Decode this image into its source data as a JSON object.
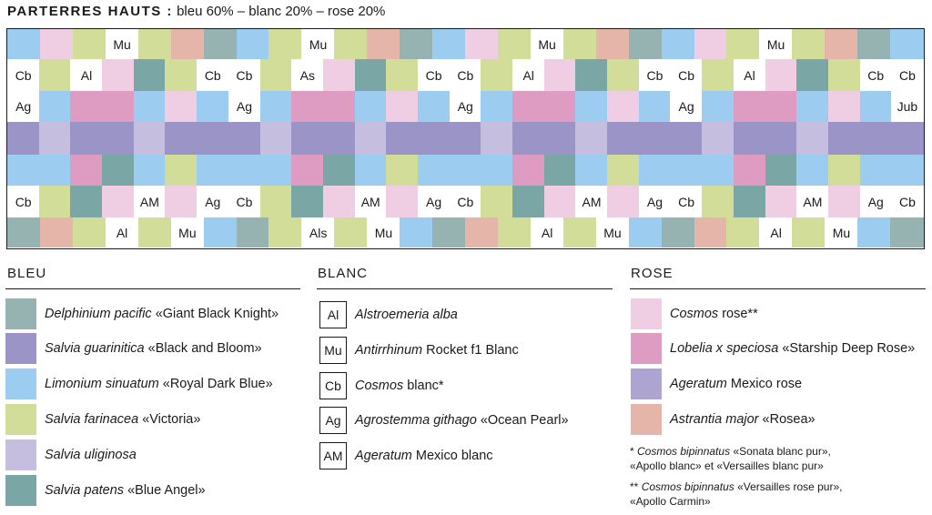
{
  "header": {
    "title_bold": "PARTERRES HAUTS :",
    "title_rest": " bleu 60% – blanc 20% – rose 20%"
  },
  "colors": {
    "dp": "#97b3b1",
    "sg": "#9b95c7",
    "ls": "#9ccdf0",
    "sf": "#d2dd9a",
    "su": "#c6bedf",
    "sp": "#7aa6a6",
    "cr": "#efcde3",
    "lx": "#df9cc2",
    "am": "#aea4d2",
    "as": "#e6b5aa",
    "w": "#ffffff"
  },
  "grid": {
    "rows": [
      [
        [
          "ls",
          ""
        ],
        [
          "cr",
          ""
        ],
        [
          "sf",
          ""
        ],
        [
          "w",
          "Mu"
        ],
        [
          "sf",
          ""
        ],
        [
          "as",
          ""
        ],
        [
          "dp",
          ""
        ],
        [
          "ls",
          ""
        ],
        [
          "sf",
          ""
        ],
        [
          "w",
          "Mu"
        ],
        [
          "sf",
          ""
        ],
        [
          "as",
          ""
        ],
        [
          "dp",
          ""
        ],
        [
          "ls",
          ""
        ],
        [
          "cr",
          ""
        ],
        [
          "sf",
          ""
        ],
        [
          "w",
          "Mu"
        ],
        [
          "sf",
          ""
        ],
        [
          "as",
          ""
        ],
        [
          "dp",
          ""
        ],
        [
          "ls",
          ""
        ],
        [
          "cr",
          ""
        ],
        [
          "sf",
          ""
        ],
        [
          "w",
          "Mu"
        ],
        [
          "sf",
          ""
        ],
        [
          "as",
          ""
        ],
        [
          "dp",
          ""
        ],
        [
          "ls",
          ""
        ]
      ],
      [
        [
          "w",
          "Cb"
        ],
        [
          "sf",
          ""
        ],
        [
          "w",
          "Al"
        ],
        [
          "cr",
          ""
        ],
        [
          "sp",
          ""
        ],
        [
          "sf",
          ""
        ],
        [
          "w",
          "Cb"
        ],
        [
          "w",
          "Cb"
        ],
        [
          "sf",
          ""
        ],
        [
          "w",
          "As"
        ],
        [
          "cr",
          ""
        ],
        [
          "sp",
          ""
        ],
        [
          "sf",
          ""
        ],
        [
          "w",
          "Cb"
        ],
        [
          "w",
          "Cb"
        ],
        [
          "sf",
          ""
        ],
        [
          "w",
          "Al"
        ],
        [
          "cr",
          ""
        ],
        [
          "sp",
          ""
        ],
        [
          "sf",
          ""
        ],
        [
          "w",
          "Cb"
        ],
        [
          "w",
          "Cb"
        ],
        [
          "sf",
          ""
        ],
        [
          "w",
          "Al"
        ],
        [
          "cr",
          ""
        ],
        [
          "sp",
          ""
        ],
        [
          "sf",
          ""
        ],
        [
          "w",
          "Cb"
        ],
        [
          "w",
          "Cb"
        ]
      ],
      [
        [
          "w",
          "Ag"
        ],
        [
          "ls",
          ""
        ],
        [
          "lx",
          ""
        ],
        [
          "lx",
          ""
        ],
        [
          "ls",
          ""
        ],
        [
          "cr",
          ""
        ],
        [
          "ls",
          ""
        ],
        [
          "w",
          "Ag"
        ],
        [
          "ls",
          ""
        ],
        [
          "lx",
          ""
        ],
        [
          "lx",
          ""
        ],
        [
          "ls",
          ""
        ],
        [
          "cr",
          ""
        ],
        [
          "ls",
          ""
        ],
        [
          "w",
          "Ag"
        ],
        [
          "ls",
          ""
        ],
        [
          "lx",
          ""
        ],
        [
          "lx",
          ""
        ],
        [
          "ls",
          ""
        ],
        [
          "cr",
          ""
        ],
        [
          "ls",
          ""
        ],
        [
          "w",
          "Ag"
        ],
        [
          "ls",
          ""
        ],
        [
          "lx",
          ""
        ],
        [
          "lx",
          ""
        ],
        [
          "ls",
          ""
        ],
        [
          "cr",
          ""
        ],
        [
          "ls",
          ""
        ],
        [
          "w",
          "Jub"
        ]
      ],
      [
        [
          "sg",
          ""
        ],
        [
          "su",
          ""
        ],
        [
          "sg",
          ""
        ],
        [
          "sg",
          ""
        ],
        [
          "su",
          ""
        ],
        [
          "sg",
          ""
        ],
        [
          "sg",
          ""
        ],
        [
          "sg",
          ""
        ],
        [
          "su",
          ""
        ],
        [
          "sg",
          ""
        ],
        [
          "sg",
          ""
        ],
        [
          "su",
          ""
        ],
        [
          "sg",
          ""
        ],
        [
          "sg",
          ""
        ],
        [
          "sg",
          ""
        ],
        [
          "su",
          ""
        ],
        [
          "sg",
          ""
        ],
        [
          "sg",
          ""
        ],
        [
          "su",
          ""
        ],
        [
          "sg",
          ""
        ],
        [
          "sg",
          ""
        ],
        [
          "sg",
          ""
        ],
        [
          "su",
          ""
        ],
        [
          "sg",
          ""
        ],
        [
          "sg",
          ""
        ],
        [
          "su",
          ""
        ],
        [
          "sg",
          ""
        ],
        [
          "sg",
          ""
        ],
        [
          "sg",
          ""
        ]
      ],
      [
        [
          "ls",
          ""
        ],
        [
          "ls",
          ""
        ],
        [
          "lx",
          ""
        ],
        [
          "sp",
          ""
        ],
        [
          "ls",
          ""
        ],
        [
          "sf",
          ""
        ],
        [
          "ls",
          ""
        ],
        [
          "ls",
          ""
        ],
        [
          "ls",
          ""
        ],
        [
          "lx",
          ""
        ],
        [
          "sp",
          ""
        ],
        [
          "ls",
          ""
        ],
        [
          "sf",
          ""
        ],
        [
          "ls",
          ""
        ],
        [
          "ls",
          ""
        ],
        [
          "ls",
          ""
        ],
        [
          "lx",
          ""
        ],
        [
          "sp",
          ""
        ],
        [
          "ls",
          ""
        ],
        [
          "sf",
          ""
        ],
        [
          "ls",
          ""
        ],
        [
          "ls",
          ""
        ],
        [
          "ls",
          ""
        ],
        [
          "lx",
          ""
        ],
        [
          "sp",
          ""
        ],
        [
          "ls",
          ""
        ],
        [
          "sf",
          ""
        ],
        [
          "ls",
          ""
        ],
        [
          "ls",
          ""
        ]
      ],
      [
        [
          "w",
          "Cb"
        ],
        [
          "sf",
          ""
        ],
        [
          "sp",
          ""
        ],
        [
          "cr",
          ""
        ],
        [
          "w",
          "AM"
        ],
        [
          "cr",
          ""
        ],
        [
          "w",
          "Ag"
        ],
        [
          "w",
          "Cb"
        ],
        [
          "sf",
          ""
        ],
        [
          "sp",
          ""
        ],
        [
          "cr",
          ""
        ],
        [
          "w",
          "AM"
        ],
        [
          "cr",
          ""
        ],
        [
          "w",
          "Ag"
        ],
        [
          "w",
          "Cb"
        ],
        [
          "sf",
          ""
        ],
        [
          "sp",
          ""
        ],
        [
          "cr",
          ""
        ],
        [
          "w",
          "AM"
        ],
        [
          "cr",
          ""
        ],
        [
          "w",
          "Ag"
        ],
        [
          "w",
          "Cb"
        ],
        [
          "sf",
          ""
        ],
        [
          "sp",
          ""
        ],
        [
          "cr",
          ""
        ],
        [
          "w",
          "AM"
        ],
        [
          "cr",
          ""
        ],
        [
          "w",
          "Ag"
        ],
        [
          "w",
          "Cb"
        ]
      ],
      [
        [
          "dp",
          ""
        ],
        [
          "as",
          ""
        ],
        [
          "sf",
          ""
        ],
        [
          "w",
          "Al"
        ],
        [
          "sf",
          ""
        ],
        [
          "w",
          "Mu"
        ],
        [
          "ls",
          ""
        ],
        [
          "dp",
          ""
        ],
        [
          "sf",
          ""
        ],
        [
          "w",
          "Als"
        ],
        [
          "sf",
          ""
        ],
        [
          "w",
          "Mu"
        ],
        [
          "ls",
          ""
        ],
        [
          "dp",
          ""
        ],
        [
          "as",
          ""
        ],
        [
          "sf",
          ""
        ],
        [
          "w",
          "Al"
        ],
        [
          "sf",
          ""
        ],
        [
          "w",
          "Mu"
        ],
        [
          "ls",
          ""
        ],
        [
          "dp",
          ""
        ],
        [
          "as",
          ""
        ],
        [
          "sf",
          ""
        ],
        [
          "w",
          "Al"
        ],
        [
          "sf",
          ""
        ],
        [
          "w",
          "Mu"
        ],
        [
          "ls",
          ""
        ],
        [
          "dp",
          ""
        ]
      ]
    ]
  },
  "bleu": {
    "title": "BLEU",
    "items": [
      {
        "color": "dp",
        "name": "Delphinium pacific",
        "cv": " «Giant Black Knight»"
      },
      {
        "color": "sg",
        "name": "Salvia guarinitica",
        "cv": " «Black and Bloom»"
      },
      {
        "color": "ls",
        "name": "Limonium sinuatum",
        "cv": " «Royal Dark Blue»"
      },
      {
        "color": "sf",
        "name": "Salvia farinacea",
        "cv": " «Victoria»"
      },
      {
        "color": "su",
        "name": "Salvia uliginosa",
        "cv": ""
      },
      {
        "color": "sp",
        "name": "Salvia patens",
        "cv": " «Blue Angel»"
      }
    ]
  },
  "blanc": {
    "title": "BLANC",
    "items": [
      {
        "code": "Al",
        "name": "Alstroemeria alba",
        "cv": ""
      },
      {
        "code": "Mu",
        "name": "Antirrhinum",
        "cv": " Rocket f1 Blanc"
      },
      {
        "code": "Cb",
        "name": "Cosmos",
        "cv": " blanc*"
      },
      {
        "code": "Ag",
        "name": "Agrostemma githago",
        "cv": " «Ocean Pearl»"
      },
      {
        "code": "AM",
        "name": "Ageratum",
        "cv": " Mexico blanc"
      }
    ]
  },
  "rose": {
    "title": "ROSE",
    "items": [
      {
        "color": "cr",
        "name": "Cosmos",
        "cv": " rose**"
      },
      {
        "color": "lx",
        "name": "Lobelia x speciosa",
        "cv": " «Starship Deep Rose»"
      },
      {
        "color": "am",
        "name": "Ageratum",
        "cv": " Mexico rose"
      },
      {
        "color": "as",
        "name": "Astrantia major",
        "cv": " «Rosea»"
      }
    ]
  },
  "notes": {
    "n1_mark": "*  ",
    "n1_name": "Cosmos bipinnatus",
    "n1_rest": " «Sonata blanc pur»,",
    "n1_line2": "«Apollo blanc» et «Versailles blanc pur»",
    "n2_mark": "** ",
    "n2_name": "Cosmos bipinnatus",
    "n2_rest": " «Versailles rose pur»,",
    "n2_line2": "«Apollo Carmin»"
  }
}
